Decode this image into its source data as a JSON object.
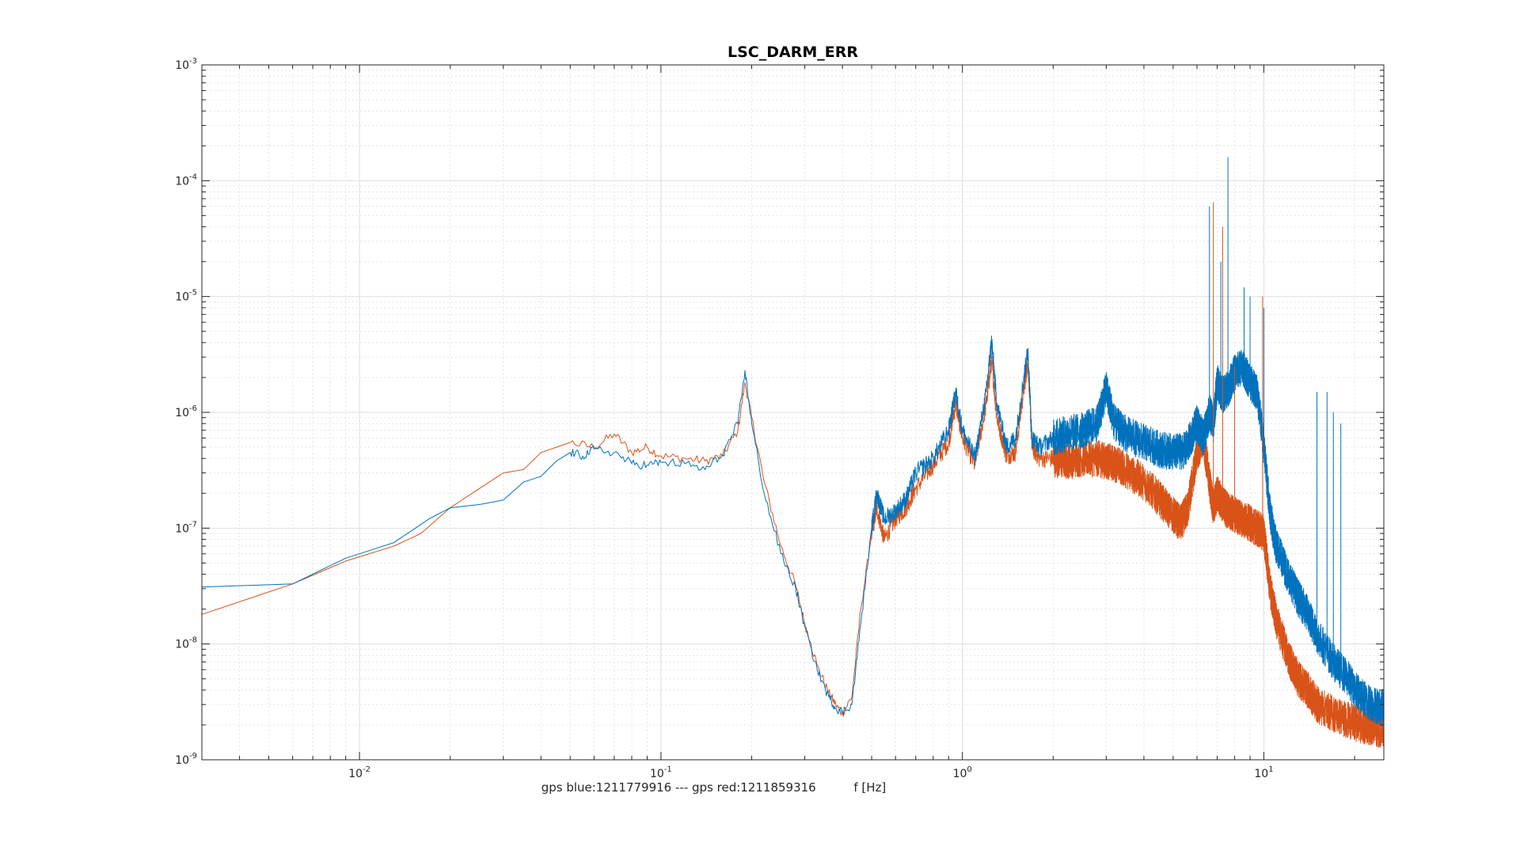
{
  "chart_data": {
    "type": "line",
    "title": "LSC_DARM_ERR",
    "xlabel": "gps blue:1211779916 --- gps red:1211859316          f [Hz]",
    "ylabel": "",
    "xscale": "log",
    "yscale": "log",
    "xlim": [
      0.003,
      25
    ],
    "ylim": [
      1e-09,
      0.001
    ],
    "grid": true,
    "minor_grid": true,
    "x_ticks": [
      {
        "base": "10",
        "exp": "-2",
        "value": 0.01
      },
      {
        "base": "10",
        "exp": "-1",
        "value": 0.1
      },
      {
        "base": "10",
        "exp": "0",
        "value": 1
      },
      {
        "base": "10",
        "exp": "1",
        "value": 10
      }
    ],
    "y_ticks": [
      {
        "base": "10",
        "exp": "-9",
        "value": 1e-09
      },
      {
        "base": "10",
        "exp": "-8",
        "value": 1e-08
      },
      {
        "base": "10",
        "exp": "-7",
        "value": 1e-07
      },
      {
        "base": "10",
        "exp": "-6",
        "value": 1e-06
      },
      {
        "base": "10",
        "exp": "-5",
        "value": 1e-05
      },
      {
        "base": "10",
        "exp": "-4",
        "value": 0.0001
      },
      {
        "base": "10",
        "exp": "-3",
        "value": 0.001
      }
    ],
    "series": [
      {
        "color": "#0072BD",
        "x": [
          0.003,
          0.006,
          0.009,
          0.013,
          0.017,
          0.02,
          0.025,
          0.03,
          0.035,
          0.04,
          0.045,
          0.05,
          0.055,
          0.06,
          0.07,
          0.08,
          0.09,
          0.1,
          0.12,
          0.14,
          0.16,
          0.18,
          0.19,
          0.2,
          0.22,
          0.25,
          0.28,
          0.3,
          0.33,
          0.36,
          0.38,
          0.4,
          0.43,
          0.46,
          0.5,
          0.52,
          0.55,
          0.6,
          0.65,
          0.7,
          0.8,
          0.9,
          0.95,
          1.0,
          1.1,
          1.2,
          1.25,
          1.3,
          1.4,
          1.5,
          1.6,
          1.65,
          1.7,
          1.8,
          2.0,
          2.2,
          2.5,
          2.8,
          3.0,
          3.2,
          3.5,
          4.0,
          4.5,
          5.0,
          5.5,
          6.0,
          6.3,
          6.6,
          6.8,
          7.0,
          7.3,
          7.6,
          8.0,
          8.5,
          9.0,
          9.5,
          10.0,
          10.5,
          11.0,
          12.0,
          13.0,
          14.0,
          15.0,
          17.0,
          19.0,
          21.0,
          23.0,
          25.0
        ],
        "y": [
          3.1e-08,
          3.3e-08,
          5.5e-08,
          7.5e-08,
          1.2e-07,
          1.5e-07,
          1.6e-07,
          1.75e-07,
          2.5e-07,
          2.8e-07,
          3.8e-07,
          4.5e-07,
          4.2e-07,
          4.8e-07,
          4.5e-07,
          3.6e-07,
          3.5e-07,
          3.7e-07,
          3.6e-07,
          3.2e-07,
          4.3e-07,
          8e-07,
          2.3e-06,
          8e-07,
          2e-07,
          6e-08,
          3e-08,
          1.4e-08,
          6e-09,
          3.5e-09,
          2.8e-09,
          2.6e-09,
          3e-09,
          1.5e-08,
          1e-07,
          2e-07,
          1.2e-07,
          1.4e-07,
          1.8e-07,
          3e-07,
          4e-07,
          7e-07,
          1.5e-06,
          7e-07,
          4e-07,
          1.5e-06,
          4.2e-06,
          1.2e-06,
          5e-07,
          6e-07,
          2e-06,
          3.5e-06,
          6e-07,
          5e-07,
          6e-07,
          6.5e-07,
          7e-07,
          8e-07,
          1.6e-06,
          8e-07,
          6.5e-07,
          5.5e-07,
          4.8e-07,
          4.5e-07,
          4.7e-07,
          8e-07,
          6e-07,
          1e-06,
          8e-07,
          1.8e-06,
          1.4e-06,
          1.6e-06,
          2.2e-06,
          2.5e-06,
          1.8e-06,
          1.5e-06,
          5e-07,
          1.3e-07,
          7e-08,
          4e-08,
          2.5e-08,
          1.8e-08,
          1.2e-08,
          7e-09,
          5e-09,
          3.5e-09,
          3e-09,
          2.8e-09
        ]
      },
      {
        "color": "#D95319",
        "x": [
          0.003,
          0.006,
          0.009,
          0.013,
          0.016,
          0.02,
          0.025,
          0.03,
          0.035,
          0.04,
          0.045,
          0.05,
          0.06,
          0.07,
          0.08,
          0.09,
          0.1,
          0.12,
          0.14,
          0.16,
          0.18,
          0.19,
          0.2,
          0.22,
          0.25,
          0.28,
          0.3,
          0.33,
          0.36,
          0.38,
          0.4,
          0.43,
          0.46,
          0.5,
          0.52,
          0.55,
          0.6,
          0.65,
          0.7,
          0.8,
          0.9,
          0.95,
          1.0,
          1.1,
          1.2,
          1.25,
          1.3,
          1.4,
          1.5,
          1.6,
          1.65,
          1.7,
          1.8,
          2.0,
          2.2,
          2.5,
          2.8,
          3.0,
          3.3,
          3.6,
          4.0,
          4.5,
          5.0,
          5.3,
          5.6,
          6.0,
          6.3,
          6.6,
          6.8,
          7.0,
          7.3,
          7.6,
          8.0,
          8.5,
          9.0,
          9.5,
          10.0,
          10.5,
          11.0,
          12.0,
          13.0,
          14.0,
          15.0,
          17.0,
          19.0,
          21.0,
          23.0,
          25.0
        ],
        "y": [
          1.8e-08,
          3.3e-08,
          5.2e-08,
          7e-08,
          9e-08,
          1.5e-07,
          2.2e-07,
          3e-07,
          3.2e-07,
          4.5e-07,
          5e-07,
          5.5e-07,
          5e-07,
          6.5e-07,
          4.5e-07,
          5e-07,
          4.2e-07,
          4e-07,
          3.8e-07,
          4.2e-07,
          7e-07,
          1.8e-06,
          9e-07,
          2.5e-07,
          7e-08,
          3.2e-08,
          1.5e-08,
          6.5e-09,
          3.8e-09,
          3e-09,
          2.5e-09,
          3.5e-09,
          2e-08,
          9e-08,
          1.5e-07,
          8e-08,
          1.2e-07,
          1.5e-07,
          2.2e-07,
          3.5e-07,
          5.5e-07,
          1.2e-06,
          6e-07,
          3.5e-07,
          1.2e-06,
          2.8e-06,
          9e-07,
          4.2e-07,
          4.5e-07,
          1.6e-06,
          2.8e-06,
          5e-07,
          4e-07,
          4e-07,
          3.8e-07,
          4e-07,
          4e-07,
          3.8e-07,
          3.5e-07,
          3e-07,
          2.5e-07,
          1.8e-07,
          1.3e-07,
          1.1e-07,
          1.5e-07,
          4.5e-07,
          6e-07,
          2.5e-07,
          1.5e-07,
          2e-07,
          1.6e-07,
          1.4e-07,
          1.3e-07,
          1.2e-07,
          1.1e-07,
          1e-07,
          9e-08,
          3e-08,
          1.6e-08,
          8e-09,
          5e-09,
          4e-09,
          3e-09,
          2.5e-09,
          2.2e-09,
          2e-09,
          1.9e-09,
          1.8e-09
        ]
      }
    ],
    "spikes": [
      {
        "series": 0,
        "x": 6.6,
        "y": 6e-05
      },
      {
        "series": 0,
        "x": 7.6,
        "y": 0.00016
      },
      {
        "series": 0,
        "x": 7.2,
        "y": 2e-05
      },
      {
        "series": 0,
        "x": 8.6,
        "y": 1.2e-05
      },
      {
        "series": 0,
        "x": 9.0,
        "y": 1e-05
      },
      {
        "series": 0,
        "x": 10.0,
        "y": 8e-06
      },
      {
        "series": 0,
        "x": 15.0,
        "y": 1.5e-06
      },
      {
        "series": 0,
        "x": 16.2,
        "y": 1.5e-06
      },
      {
        "series": 0,
        "x": 17.0,
        "y": 1e-06
      },
      {
        "series": 0,
        "x": 18.0,
        "y": 8e-07
      },
      {
        "series": 1,
        "x": 6.8,
        "y": 6.5e-05
      },
      {
        "series": 1,
        "x": 7.3,
        "y": 4e-05
      },
      {
        "series": 1,
        "x": 8.0,
        "y": 2.5e-06
      },
      {
        "series": 1,
        "x": 9.9,
        "y": 1e-05
      }
    ]
  }
}
